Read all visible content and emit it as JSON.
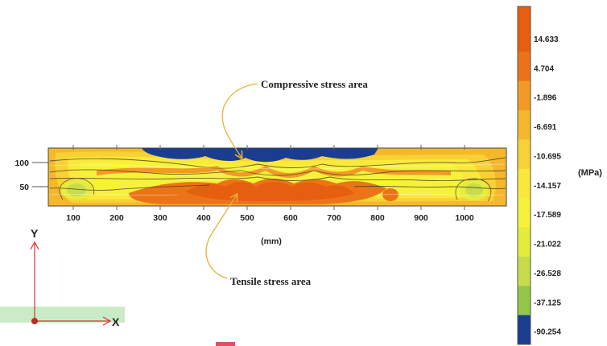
{
  "chart_data": {
    "type": "heatmap",
    "x_unit_label": "(mm)",
    "x_ticks": [
      100,
      200,
      300,
      400,
      500,
      600,
      700,
      800,
      900,
      1000
    ],
    "y_ticks": [
      100,
      50
    ],
    "xlim": [
      0,
      1090
    ],
    "ylim": [
      0,
      140
    ],
    "colorbar": {
      "unit": "(MPa)",
      "levels": [
        14.633,
        4.704,
        -1.896,
        -6.691,
        -10.695,
        -14.157,
        -17.589,
        -21.022,
        -26.528,
        -37.125,
        -90.254
      ],
      "colors": [
        "#e65e10",
        "#ec7418",
        "#f39a26",
        "#f5b82c",
        "#f8d234",
        "#fae83c",
        "#f6f23a",
        "#e4ec3e",
        "#c8dc4a",
        "#94c648",
        "#1a3d8f"
      ]
    },
    "annotations": {
      "compressive": "Compressive stress area",
      "tensile": "Tensile stress area"
    },
    "coordinate_axes": {
      "y": "Y",
      "x": "X"
    }
  }
}
